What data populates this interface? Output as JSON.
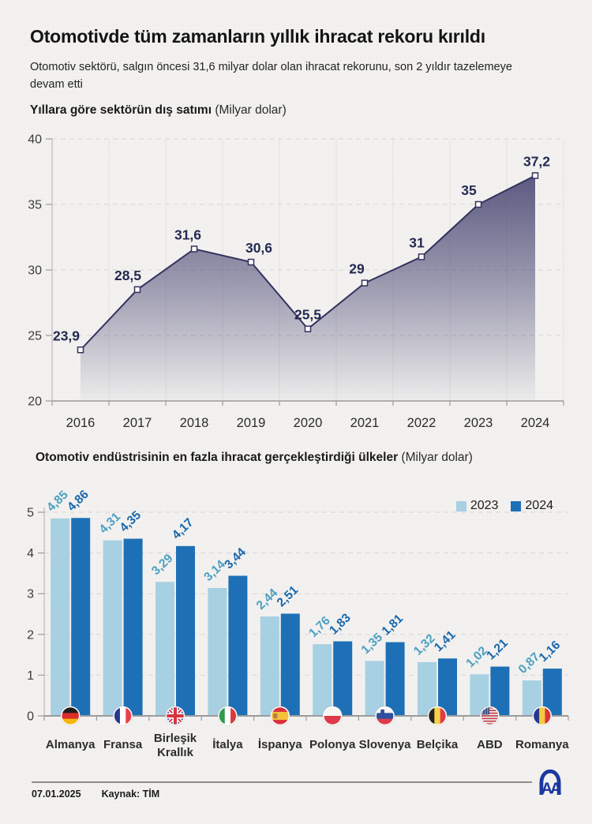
{
  "page": {
    "title": "Otomotivde tüm zamanların yıllık ihracat rekoru kırıldı",
    "subtitle": "Otomotiv sektörü, salgın öncesi 31,6 milyar dolar olan ihracat rekorunu, son 2 yıldır tazelemeye devam etti",
    "footer": {
      "date": "07.01.2025",
      "source_label": "Kaynak: TİM",
      "logo_text": "AA"
    }
  },
  "colors": {
    "background": "#f2f1ef",
    "line": "#34325f",
    "area_top": "#3d3b6a",
    "point_label": "#232a52",
    "grid": "#e3e1de",
    "grid_dashed": "#d7d5d2",
    "axis": "#9b9b9b",
    "axis_light": "#bcbab7",
    "tick_text": "#3b3b3b",
    "category_text": "#2c2c2c",
    "logo_blue": "#1c37a0"
  },
  "chart_data": [
    {
      "type": "area",
      "title": "Yıllara göre sektörün dış satımı",
      "unit_note": "(Milyar dolar)",
      "categories": [
        "2016",
        "2017",
        "2018",
        "2019",
        "2020",
        "2021",
        "2022",
        "2023",
        "2024"
      ],
      "values": [
        23.9,
        28.5,
        31.6,
        30.6,
        25.5,
        29,
        31,
        35,
        37.2
      ],
      "value_labels": [
        "23,9",
        "28,5",
        "31,6",
        "30,6",
        "25,5",
        "29",
        "31",
        "35",
        "37,2"
      ],
      "ylim": [
        20,
        40
      ],
      "yticks": [
        20,
        25,
        30,
        35,
        40
      ],
      "grid": "on",
      "legend_position": "none"
    },
    {
      "type": "bar",
      "title": "Otomotiv endüstrisinin en fazla ihracat gerçekleştirdiği ülkeler",
      "unit_note": "(Milyar dolar)",
      "legend_position": "top-right",
      "ylim": [
        0,
        5
      ],
      "yticks": [
        0,
        1,
        2,
        3,
        4,
        5
      ],
      "categories": [
        "Almanya",
        "Fransa",
        "Birleşik Krallık",
        "İtalya",
        "İspanya",
        "Polonya",
        "Slovenya",
        "Belçika",
        "ABD",
        "Romanya"
      ],
      "category_lines": [
        [
          "Almanya"
        ],
        [
          "Fransa"
        ],
        [
          "Birleşik",
          "Krallık"
        ],
        [
          "İtalya"
        ],
        [
          "İspanya"
        ],
        [
          "Polonya"
        ],
        [
          "Slovenya"
        ],
        [
          "Belçika"
        ],
        [
          "ABD"
        ],
        [
          "Romanya"
        ]
      ],
      "flags": [
        "germany",
        "france",
        "uk",
        "italy",
        "spain",
        "poland",
        "slovenia",
        "belgium",
        "usa",
        "romania"
      ],
      "legend": [
        {
          "label": "2023"
        },
        {
          "label": "2024"
        }
      ],
      "series": [
        {
          "name": "2023",
          "color": "#a7d0e2",
          "label_color": "#4b9fc2",
          "values": [
            4.85,
            4.31,
            3.29,
            3.14,
            2.44,
            1.76,
            1.35,
            1.32,
            1.02,
            0.87
          ],
          "value_labels": [
            "4,85",
            "4,31",
            "3,29",
            "3,14",
            "2,44",
            "1,76",
            "1,35",
            "1,32",
            "1,02",
            "0,87"
          ]
        },
        {
          "name": "2024",
          "color": "#1e70b6",
          "label_color": "#1867ad",
          "values": [
            4.86,
            4.35,
            4.17,
            3.44,
            2.51,
            1.83,
            1.81,
            1.41,
            1.21,
            1.16
          ],
          "value_labels": [
            "4,86",
            "4,35",
            "4,17",
            "3,44",
            "2,51",
            "1,83",
            "1,81",
            "1,41",
            "1,21",
            "1,16"
          ]
        }
      ],
      "flag_defs": {
        "germany": {
          "type": "h",
          "colors": [
            "#1f1d1b",
            "#dd2c2c",
            "#f5b60f"
          ]
        },
        "france": {
          "type": "v",
          "colors": [
            "#27378e",
            "#ffffff",
            "#e8414b"
          ]
        },
        "uk": {
          "type": "uk",
          "field": "#2b3c8f",
          "cross_red": "#d8333e",
          "cross_white": "#ffffff"
        },
        "italy": {
          "type": "v",
          "colors": [
            "#2f9a47",
            "#ffffff",
            "#d93b3b"
          ]
        },
        "spain": {
          "type": "h",
          "colors": [
            "#d8333e",
            "#f4c13e",
            "#d8333e"
          ],
          "weights": [
            0.27,
            0.46,
            0.27
          ],
          "emblem": {
            "color": "#b98243",
            "dx": -6,
            "dy": 0
          }
        },
        "poland": {
          "type": "h",
          "colors": [
            "#f7f6f4",
            "#dd3b4c"
          ]
        },
        "slovenia": {
          "type": "h",
          "colors": [
            "#f7f6f4",
            "#2d50a0",
            "#dd3b4c"
          ],
          "emblem": {
            "color": "#2d50a0",
            "dx": -3,
            "dy": -5
          }
        },
        "belgium": {
          "type": "v",
          "colors": [
            "#26231f",
            "#f7d247",
            "#e23b46"
          ]
        },
        "usa": {
          "type": "us",
          "stripe_red": "#c03c48",
          "stripe_white": "#f4f3f1",
          "canton": "#2e3f77",
          "stars": "#ffffff"
        },
        "romania": {
          "type": "v",
          "colors": [
            "#27378e",
            "#f6c93f",
            "#d8333e"
          ]
        }
      }
    }
  ]
}
